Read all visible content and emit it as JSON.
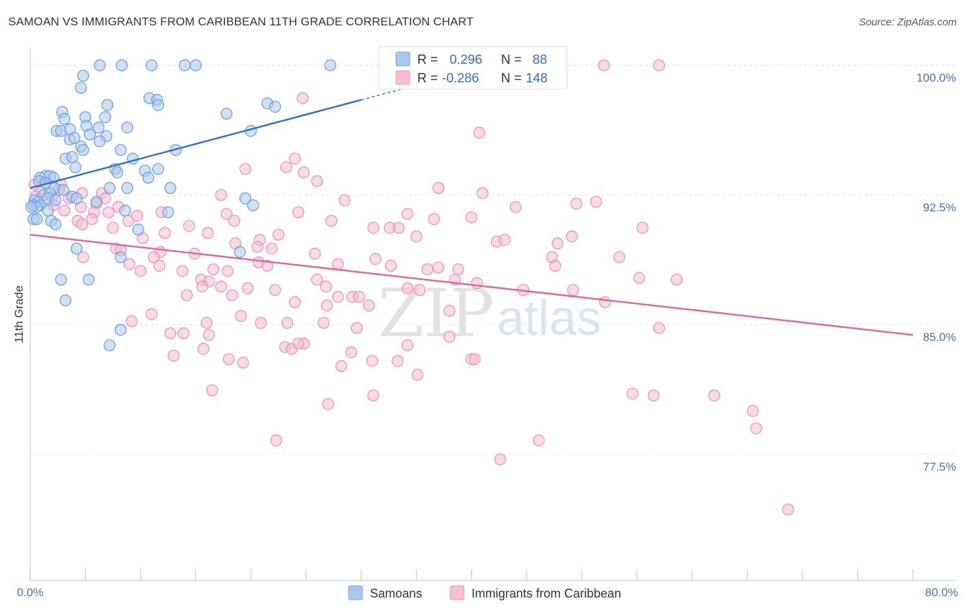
{
  "title": "SAMOAN VS IMMIGRANTS FROM CARIBBEAN 11TH GRADE CORRELATION CHART",
  "source": "Source: ZipAtlas.com",
  "watermark": {
    "zip": "ZIP",
    "atlas": "atlas"
  },
  "legend_box": [
    {
      "r_label": "R =",
      "r_value": "0.296",
      "n_label": "N =",
      "n_value": "88"
    },
    {
      "r_label": "R =",
      "r_value": "-0.286",
      "n_label": "N =",
      "n_value": "148"
    }
  ],
  "bottom_legend": [
    "Samoans",
    "Immigrants from Caribbean"
  ],
  "colors": {
    "samoans_fill": "#a8c8f0",
    "samoans_stroke": "#6f9fdc",
    "samoans_line": "#2f72c8",
    "carib_fill": "#f6bcd0",
    "carib_stroke": "#ec93b3",
    "carib_line": "#e0679a",
    "tick_label": "#3d73c4",
    "grid": "#dde3ea"
  },
  "chart_data": {
    "type": "scatter",
    "title": "SAMOAN VS IMMIGRANTS FROM CARIBBEAN 11TH GRADE CORRELATION CHART",
    "xlabel": "",
    "ylabel": "11th Grade",
    "xlim": [
      0,
      80
    ],
    "ylim": [
      70.2,
      101.0
    ],
    "x_tick_labels": [
      "0.0%",
      "80.0%"
    ],
    "y_ticks": [
      77.5,
      85.0,
      92.5,
      100.0
    ],
    "y_tick_labels": [
      "77.5%",
      "85.0%",
      "92.5%",
      "100.0%"
    ],
    "grid": "horizontal dashed",
    "legend_position": "top-center",
    "series": [
      {
        "name": "Samoans",
        "R": 0.296,
        "N": 88,
        "trend": {
          "x": [
            0.0,
            30.0
          ],
          "y": [
            92.9,
            98.0
          ]
        },
        "points": [
          [
            6.3,
            100.0
          ],
          [
            8.3,
            100.0
          ],
          [
            11.0,
            100.0
          ],
          [
            14.0,
            100.0
          ],
          [
            15.0,
            100.0
          ],
          [
            27.2,
            100.0
          ],
          [
            4.8,
            99.4
          ],
          [
            4.6,
            98.7
          ],
          [
            10.8,
            98.1
          ],
          [
            11.5,
            98.0
          ],
          [
            7.0,
            97.7
          ],
          [
            11.6,
            97.7
          ],
          [
            21.5,
            97.8
          ],
          [
            22.2,
            97.6
          ],
          [
            2.9,
            97.3
          ],
          [
            17.8,
            97.2
          ],
          [
            3.1,
            96.9
          ],
          [
            5.0,
            97.0
          ],
          [
            6.8,
            97.0
          ],
          [
            5.1,
            96.5
          ],
          [
            6.2,
            96.4
          ],
          [
            8.8,
            96.4
          ],
          [
            2.4,
            96.2
          ],
          [
            2.8,
            96.2
          ],
          [
            3.6,
            96.3
          ],
          [
            20.0,
            96.2
          ],
          [
            5.4,
            96.0
          ],
          [
            3.6,
            95.7
          ],
          [
            4.0,
            95.8
          ],
          [
            6.9,
            95.9
          ],
          [
            6.3,
            95.6
          ],
          [
            4.6,
            95.3
          ],
          [
            4.8,
            95.1
          ],
          [
            8.2,
            95.1
          ],
          [
            13.2,
            95.1
          ],
          [
            3.2,
            94.6
          ],
          [
            3.8,
            94.7
          ],
          [
            9.3,
            94.6
          ],
          [
            4.1,
            94.1
          ],
          [
            7.7,
            94.0
          ],
          [
            11.6,
            94.0
          ],
          [
            10.4,
            93.9
          ],
          [
            7.9,
            93.8
          ],
          [
            1.4,
            93.6
          ],
          [
            1.8,
            93.6
          ],
          [
            0.9,
            93.5
          ],
          [
            2.1,
            93.5
          ],
          [
            10.7,
            93.5
          ],
          [
            0.8,
            93.3
          ],
          [
            1.4,
            93.2
          ],
          [
            2.2,
            92.9
          ],
          [
            7.2,
            92.9
          ],
          [
            8.8,
            92.9
          ],
          [
            12.7,
            92.9
          ],
          [
            3.0,
            92.8
          ],
          [
            1.2,
            92.5
          ],
          [
            1.8,
            92.6
          ],
          [
            3.8,
            92.4
          ],
          [
            1.6,
            92.3
          ],
          [
            4.2,
            92.3
          ],
          [
            0.4,
            92.2
          ],
          [
            0.7,
            92.1
          ],
          [
            2.3,
            92.2
          ],
          [
            6.0,
            92.1
          ],
          [
            19.5,
            92.3
          ],
          [
            0.3,
            91.9
          ],
          [
            0.9,
            91.9
          ],
          [
            0.6,
            91.8
          ],
          [
            0.1,
            91.8
          ],
          [
            20.2,
            91.9
          ],
          [
            1.6,
            91.6
          ],
          [
            8.6,
            91.6
          ],
          [
            12.5,
            91.5
          ],
          [
            0.3,
            91.1
          ],
          [
            0.6,
            91.1
          ],
          [
            1.9,
            91.0
          ],
          [
            2.3,
            90.8
          ],
          [
            9.8,
            90.5
          ],
          [
            4.2,
            89.4
          ],
          [
            19.0,
            89.2
          ],
          [
            8.2,
            88.9
          ],
          [
            2.8,
            87.6
          ],
          [
            5.3,
            87.6
          ],
          [
            3.2,
            86.4
          ],
          [
            8.2,
            84.7
          ],
          [
            7.2,
            83.8
          ]
        ]
      },
      {
        "name": "Immigrants from Caribbean",
        "R": -0.286,
        "N": 148,
        "trend": {
          "x": [
            0.0,
            80.0
          ],
          "y": [
            90.2,
            84.4
          ]
        },
        "points": [
          [
            52.0,
            100.0
          ],
          [
            57.0,
            100.0
          ],
          [
            24.7,
            98.1
          ],
          [
            40.7,
            96.1
          ],
          [
            24.0,
            94.6
          ],
          [
            23.2,
            94.1
          ],
          [
            19.5,
            94.0
          ],
          [
            24.8,
            93.8
          ],
          [
            0.4,
            93.1
          ],
          [
            1.4,
            93.2
          ],
          [
            2.8,
            93.1
          ],
          [
            26.0,
            93.3
          ],
          [
            37.0,
            92.9
          ],
          [
            1.0,
            92.7
          ],
          [
            2.6,
            92.8
          ],
          [
            4.7,
            92.6
          ],
          [
            6.5,
            92.6
          ],
          [
            17.3,
            92.5
          ],
          [
            41.0,
            92.6
          ],
          [
            0.5,
            92.4
          ],
          [
            2.0,
            92.4
          ],
          [
            3.5,
            92.3
          ],
          [
            6.8,
            92.3
          ],
          [
            28.5,
            92.2
          ],
          [
            49.5,
            92.0
          ],
          [
            51.3,
            92.1
          ],
          [
            2.1,
            91.9
          ],
          [
            6.0,
            92.0
          ],
          [
            4.6,
            91.8
          ],
          [
            8.0,
            91.8
          ],
          [
            44.0,
            91.8
          ],
          [
            3.1,
            91.6
          ],
          [
            5.8,
            91.5
          ],
          [
            7.1,
            91.5
          ],
          [
            9.7,
            91.3
          ],
          [
            11.9,
            91.5
          ],
          [
            17.8,
            91.4
          ],
          [
            24.3,
            91.5
          ],
          [
            34.2,
            91.4
          ],
          [
            40.0,
            91.2
          ],
          [
            4.3,
            91.0
          ],
          [
            5.6,
            91.1
          ],
          [
            8.9,
            91.0
          ],
          [
            18.5,
            91.0
          ],
          [
            27.3,
            91.0
          ],
          [
            36.6,
            91.1
          ],
          [
            4.7,
            90.8
          ],
          [
            7.5,
            90.6
          ],
          [
            14.4,
            90.7
          ],
          [
            31.1,
            90.6
          ],
          [
            32.6,
            90.6
          ],
          [
            33.4,
            90.6
          ],
          [
            55.5,
            90.6
          ],
          [
            12.2,
            90.3
          ],
          [
            16.1,
            90.3
          ],
          [
            22.5,
            90.2
          ],
          [
            35.0,
            90.1
          ],
          [
            49.1,
            90.1
          ],
          [
            10.2,
            90.0
          ],
          [
            20.8,
            89.9
          ],
          [
            42.3,
            89.8
          ],
          [
            43.0,
            89.9
          ],
          [
            47.8,
            89.7
          ],
          [
            18.6,
            89.7
          ],
          [
            20.6,
            89.5
          ],
          [
            7.8,
            89.4
          ],
          [
            8.2,
            89.3
          ],
          [
            21.9,
            89.4
          ],
          [
            11.8,
            89.2
          ],
          [
            14.9,
            89.1
          ],
          [
            25.8,
            89.1
          ],
          [
            4.8,
            88.9
          ],
          [
            11.2,
            88.9
          ],
          [
            31.3,
            88.8
          ],
          [
            47.3,
            88.9
          ],
          [
            53.4,
            88.9
          ],
          [
            20.7,
            88.6
          ],
          [
            21.5,
            88.4
          ],
          [
            9.0,
            88.5
          ],
          [
            11.7,
            88.4
          ],
          [
            27.9,
            88.5
          ],
          [
            32.7,
            88.4
          ],
          [
            37.0,
            88.3
          ],
          [
            47.6,
            88.4
          ],
          [
            10.0,
            88.1
          ],
          [
            13.8,
            88.1
          ],
          [
            16.6,
            88.2
          ],
          [
            17.9,
            88.1
          ],
          [
            36.0,
            88.2
          ],
          [
            38.8,
            88.2
          ],
          [
            15.5,
            87.6
          ],
          [
            16.2,
            87.5
          ],
          [
            26.0,
            87.6
          ],
          [
            38.5,
            87.6
          ],
          [
            40.5,
            87.4
          ],
          [
            55.2,
            87.7
          ],
          [
            58.6,
            87.6
          ],
          [
            15.6,
            87.2
          ],
          [
            17.3,
            87.2
          ],
          [
            26.8,
            87.2
          ],
          [
            19.7,
            87.1
          ],
          [
            22.2,
            87.0
          ],
          [
            34.2,
            87.1
          ],
          [
            35.3,
            87.0
          ],
          [
            44.7,
            87.0
          ],
          [
            49.2,
            87.0
          ],
          [
            14.2,
            86.7
          ],
          [
            18.3,
            86.7
          ],
          [
            27.9,
            86.6
          ],
          [
            29.2,
            86.6
          ],
          [
            29.8,
            86.6
          ],
          [
            24.0,
            86.3
          ],
          [
            52.1,
            86.3
          ],
          [
            26.9,
            86.1
          ],
          [
            30.7,
            86.1
          ],
          [
            38.0,
            85.8
          ],
          [
            11.0,
            85.6
          ],
          [
            19.1,
            85.5
          ],
          [
            9.2,
            85.2
          ],
          [
            16.0,
            85.1
          ],
          [
            20.9,
            85.1
          ],
          [
            23.3,
            85.1
          ],
          [
            26.6,
            85.1
          ],
          [
            29.6,
            84.8
          ],
          [
            12.7,
            84.5
          ],
          [
            13.9,
            84.5
          ],
          [
            16.2,
            84.4
          ],
          [
            38.0,
            84.3
          ],
          [
            57.0,
            84.8
          ],
          [
            24.8,
            83.9
          ],
          [
            23.1,
            83.7
          ],
          [
            34.2,
            83.8
          ],
          [
            15.7,
            83.6
          ],
          [
            13.0,
            83.2
          ],
          [
            18.0,
            83.0
          ],
          [
            23.7,
            83.6
          ],
          [
            24.3,
            83.9
          ],
          [
            29.1,
            83.4
          ],
          [
            40.0,
            83.0
          ],
          [
            40.3,
            83.0
          ],
          [
            19.3,
            82.8
          ],
          [
            28.2,
            82.6
          ],
          [
            31.0,
            82.9
          ],
          [
            33.3,
            82.9
          ],
          [
            35.1,
            82.1
          ],
          [
            16.5,
            81.2
          ],
          [
            31.1,
            80.9
          ],
          [
            27.0,
            80.4
          ],
          [
            56.5,
            80.9
          ],
          [
            54.6,
            81.0
          ],
          [
            62.0,
            80.9
          ],
          [
            65.5,
            80.0
          ],
          [
            22.3,
            78.3
          ],
          [
            46.1,
            78.3
          ],
          [
            65.8,
            79.0
          ],
          [
            42.6,
            77.2
          ],
          [
            68.7,
            74.3
          ]
        ]
      }
    ]
  }
}
